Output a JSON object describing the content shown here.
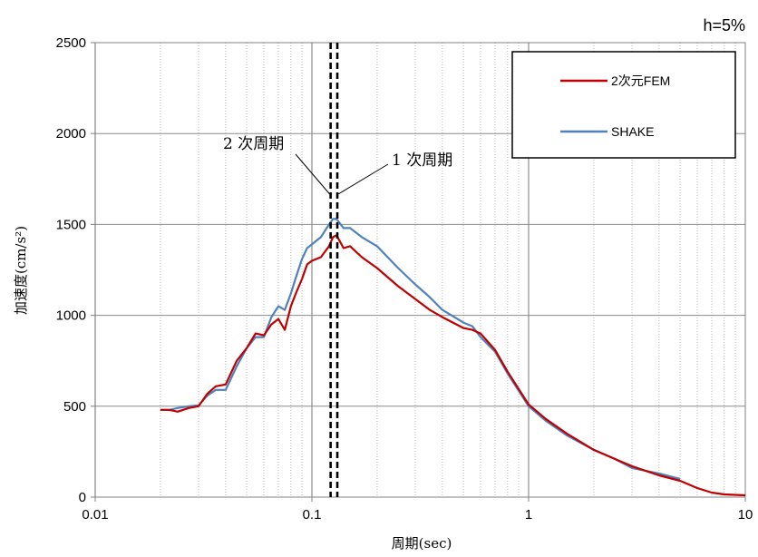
{
  "chart_data": {
    "type": "line",
    "title": "",
    "damping_label": "h=5%",
    "xlabel": "周期(sec)",
    "ylabel": "加速度(cm/s²)",
    "x_scale": "log",
    "xlim": [
      0.01,
      10
    ],
    "ylim": [
      0,
      2500
    ],
    "x_ticks": [
      {
        "value": 0.01,
        "label": "0.01"
      },
      {
        "value": 0.1,
        "label": "0.1"
      },
      {
        "value": 1,
        "label": "1"
      },
      {
        "value": 10,
        "label": "10"
      }
    ],
    "y_ticks": [
      {
        "value": 0,
        "label": "0"
      },
      {
        "value": 500,
        "label": "500"
      },
      {
        "value": 1000,
        "label": "1000"
      },
      {
        "value": 1500,
        "label": "1500"
      },
      {
        "value": 2000,
        "label": "2000"
      },
      {
        "value": 2500,
        "label": "2500"
      }
    ],
    "grid": true,
    "legend_position": "top-right",
    "series": [
      {
        "name": "2次元FEM",
        "color": "#c00000",
        "x": [
          0.02,
          0.022,
          0.024,
          0.027,
          0.03,
          0.033,
          0.036,
          0.04,
          0.045,
          0.05,
          0.055,
          0.06,
          0.065,
          0.07,
          0.075,
          0.08,
          0.085,
          0.09,
          0.095,
          0.1,
          0.11,
          0.12,
          0.125,
          0.13,
          0.14,
          0.15,
          0.17,
          0.2,
          0.25,
          0.3,
          0.35,
          0.4,
          0.5,
          0.55,
          0.6,
          0.7,
          0.8,
          1.0,
          1.2,
          1.5,
          2.0,
          2.5,
          3.0,
          4.0,
          5.0,
          6.0,
          7.0,
          8.0,
          10.0
        ],
        "y": [
          480,
          480,
          470,
          490,
          500,
          570,
          610,
          620,
          750,
          820,
          900,
          890,
          950,
          980,
          920,
          1050,
          1130,
          1200,
          1280,
          1300,
          1320,
          1380,
          1430,
          1440,
          1370,
          1380,
          1320,
          1260,
          1160,
          1090,
          1030,
          990,
          930,
          920,
          900,
          810,
          690,
          510,
          430,
          350,
          260,
          210,
          170,
          120,
          90,
          50,
          25,
          15,
          10
        ]
      },
      {
        "name": "SHAKE",
        "color": "#4f81bd",
        "x": [
          0.02,
          0.022,
          0.024,
          0.027,
          0.03,
          0.033,
          0.036,
          0.04,
          0.045,
          0.05,
          0.055,
          0.06,
          0.065,
          0.07,
          0.075,
          0.08,
          0.085,
          0.09,
          0.095,
          0.1,
          0.11,
          0.12,
          0.125,
          0.13,
          0.14,
          0.15,
          0.17,
          0.2,
          0.25,
          0.3,
          0.35,
          0.4,
          0.5,
          0.55,
          0.6,
          0.7,
          0.8,
          1.0,
          1.2,
          1.5,
          2.0,
          2.5,
          3.0,
          4.0,
          5.0
        ],
        "y": [
          480,
          480,
          490,
          500,
          505,
          560,
          590,
          590,
          720,
          820,
          880,
          880,
          990,
          1050,
          1030,
          1120,
          1220,
          1310,
          1370,
          1390,
          1430,
          1500,
          1530,
          1530,
          1480,
          1480,
          1430,
          1380,
          1260,
          1170,
          1100,
          1030,
          960,
          940,
          880,
          800,
          680,
          500,
          420,
          340,
          260,
          210,
          160,
          130,
          100
        ]
      }
    ],
    "annotations": [
      {
        "label": "2 次周期",
        "period_sec": 0.122,
        "line_style": "dashed"
      },
      {
        "label": "1 次周期",
        "period_sec": 0.131,
        "line_style": "dashed"
      }
    ]
  }
}
